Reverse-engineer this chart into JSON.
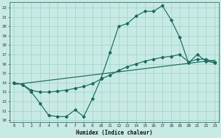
{
  "xlabel": "Humidex (Indice chaleur)",
  "xlim": [
    -0.5,
    23.5
  ],
  "ylim": [
    9.8,
    22.6
  ],
  "yticks": [
    10,
    11,
    12,
    13,
    14,
    15,
    16,
    17,
    18,
    19,
    20,
    21,
    22
  ],
  "xticks": [
    0,
    1,
    2,
    3,
    4,
    5,
    6,
    7,
    8,
    9,
    10,
    11,
    12,
    13,
    14,
    15,
    16,
    17,
    18,
    19,
    20,
    21,
    22,
    23
  ],
  "bg_color": "#c8eae4",
  "line_color": "#1a6b5e",
  "grid_color": "#9ecfca",
  "line1_x": [
    0,
    1,
    2,
    3,
    4,
    5,
    6,
    7,
    8,
    9,
    10,
    11,
    12,
    13,
    14,
    15,
    16,
    17,
    18,
    19,
    20,
    21,
    22,
    23
  ],
  "line1_y": [
    14.0,
    13.8,
    13.0,
    11.8,
    10.5,
    10.4,
    10.4,
    11.1,
    10.4,
    12.3,
    14.5,
    17.2,
    20.0,
    20.3,
    21.1,
    21.6,
    21.6,
    22.2,
    20.7,
    18.8,
    16.1,
    17.0,
    16.3,
    16.1
  ],
  "line2_x": [
    0,
    1,
    2,
    3,
    4,
    5,
    6,
    7,
    8,
    9,
    10,
    11,
    12,
    13,
    14,
    15,
    16,
    17,
    18,
    19,
    20,
    21,
    22,
    23
  ],
  "line2_y": [
    14.0,
    13.8,
    13.2,
    13.0,
    13.0,
    13.1,
    13.2,
    13.4,
    13.6,
    13.9,
    14.4,
    14.8,
    15.3,
    15.7,
    16.0,
    16.3,
    16.5,
    16.7,
    16.8,
    17.0,
    16.2,
    16.5,
    16.5,
    16.2
  ],
  "line3_x": [
    0,
    23
  ],
  "line3_y": [
    13.8,
    16.4
  ],
  "marker": "D",
  "markersize": 2.0,
  "linewidth": 0.9
}
